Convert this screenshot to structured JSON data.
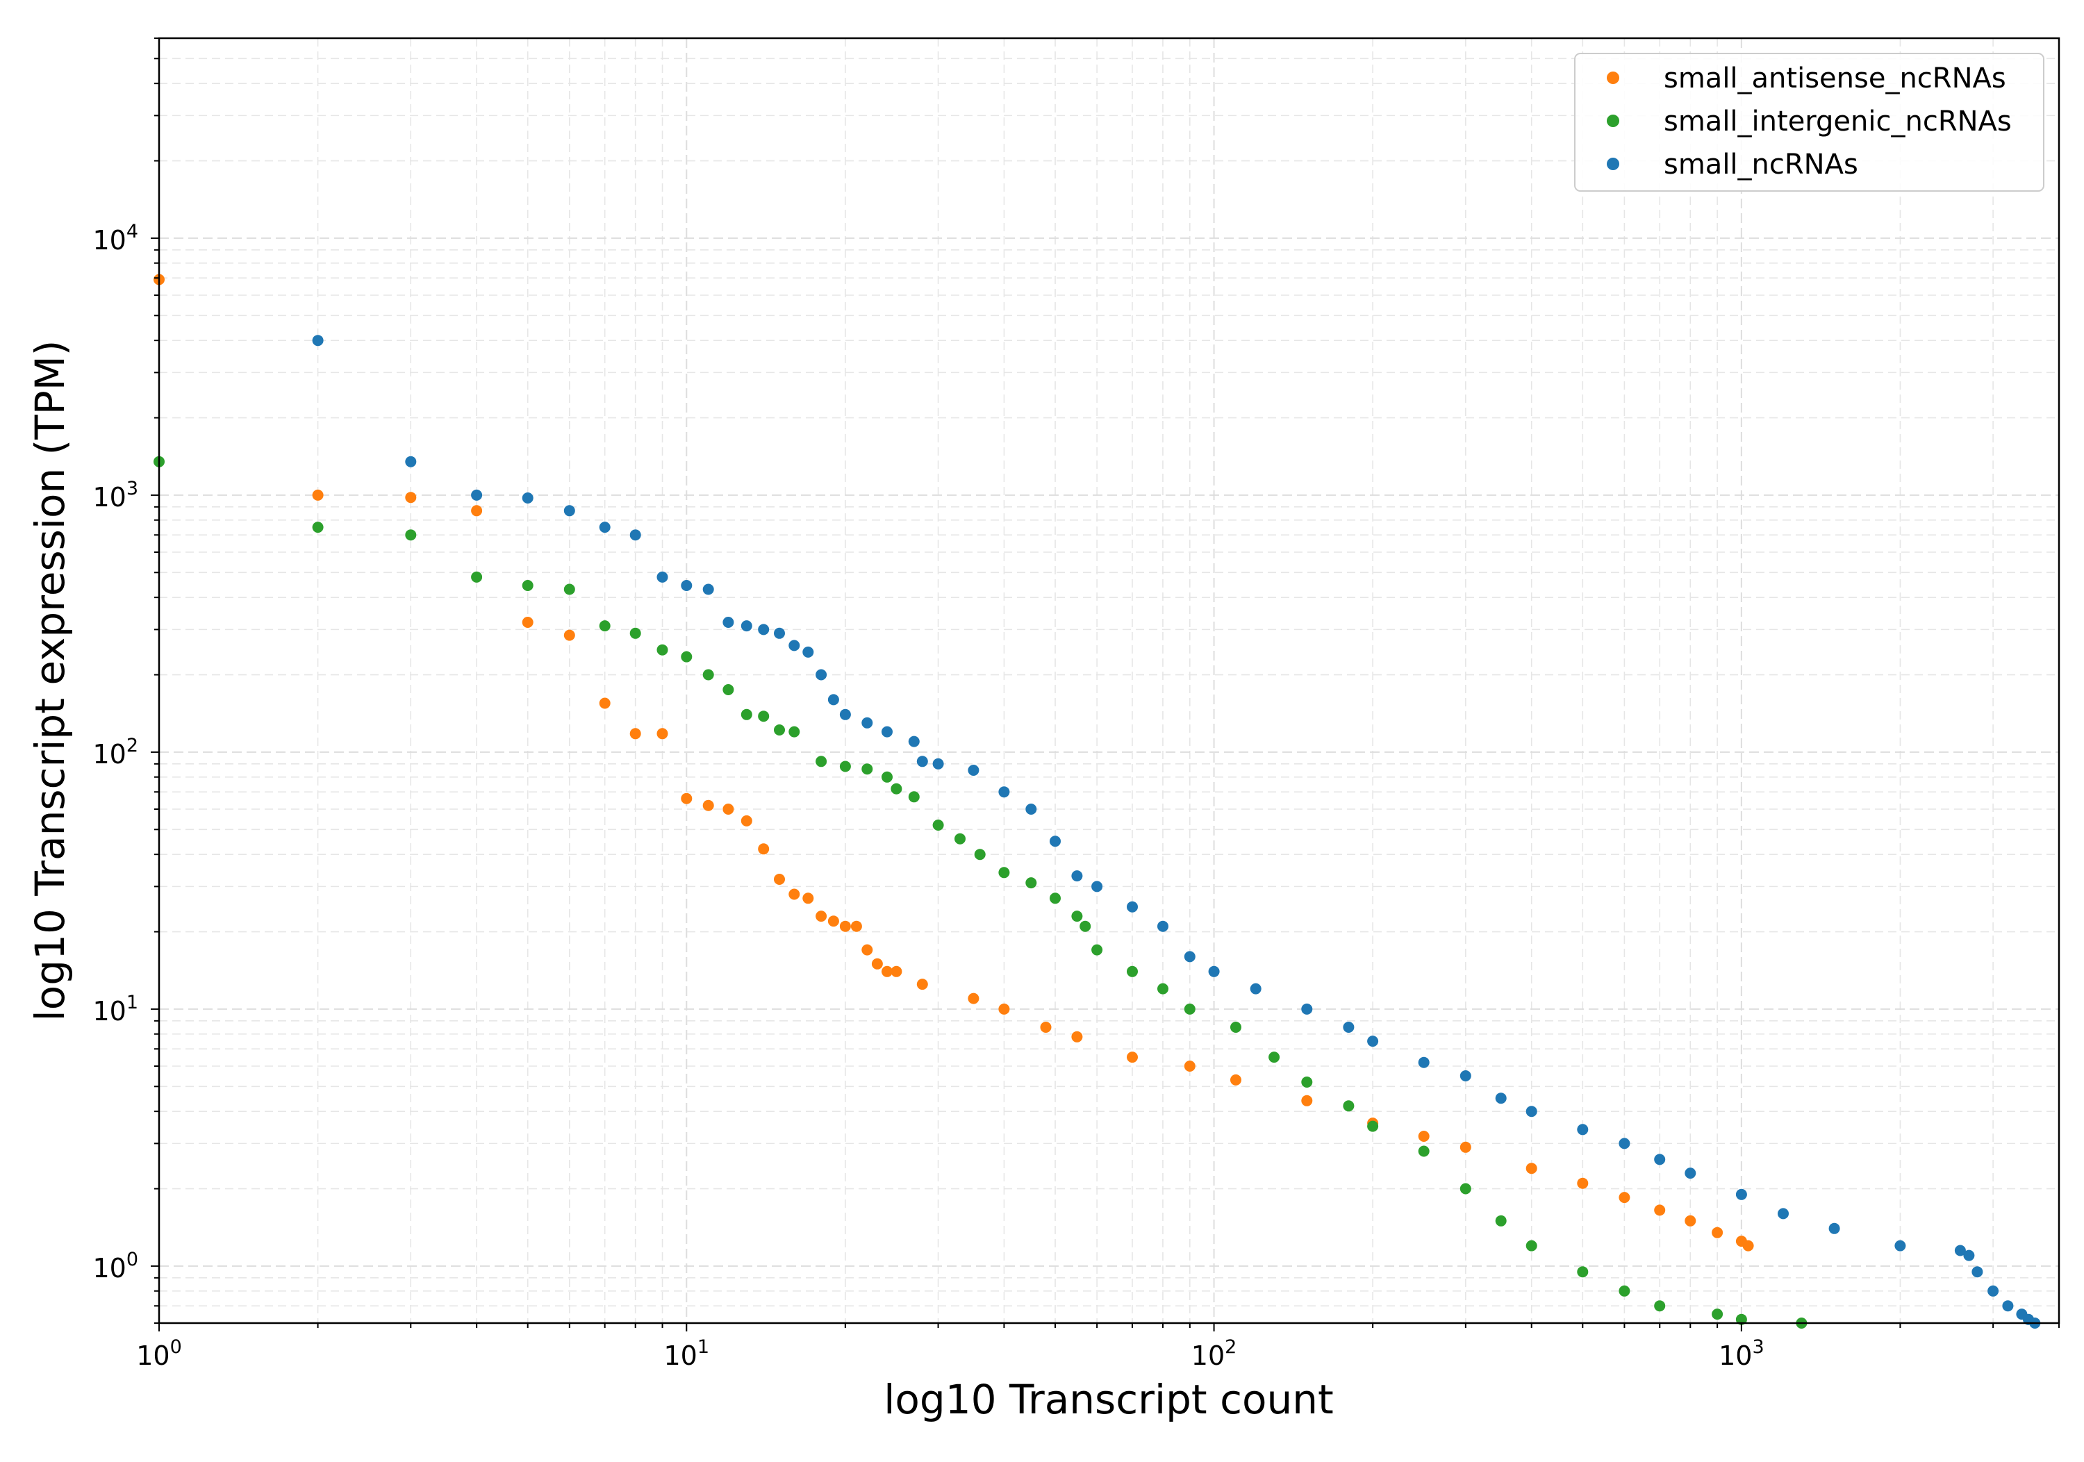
{
  "chart_data": {
    "type": "scatter",
    "xlabel": "log10 Transcript count",
    "ylabel": "log10 Transcript expression (TPM)",
    "x_scale": "log",
    "y_scale": "log",
    "xlim": [
      1,
      4000
    ],
    "ylim": [
      0.6,
      60000
    ],
    "x_ticks": [
      {
        "value": 1,
        "base": "10",
        "exp": "0"
      },
      {
        "value": 10,
        "base": "10",
        "exp": "1"
      },
      {
        "value": 100,
        "base": "10",
        "exp": "2"
      },
      {
        "value": 1000,
        "base": "10",
        "exp": "3"
      }
    ],
    "y_ticks": [
      {
        "value": 1,
        "base": "10",
        "exp": "0"
      },
      {
        "value": 10,
        "base": "10",
        "exp": "1"
      },
      {
        "value": 100,
        "base": "10",
        "exp": "2"
      },
      {
        "value": 1000,
        "base": "10",
        "exp": "3"
      },
      {
        "value": 10000,
        "base": "10",
        "exp": "4"
      }
    ],
    "grid": true,
    "legend_position": "top-right",
    "series": [
      {
        "name": "small_antisense_ncRNAs",
        "color": "#ff7f0e",
        "points": [
          [
            1,
            6900
          ],
          [
            2,
            1000
          ],
          [
            3,
            980
          ],
          [
            4,
            870
          ],
          [
            5,
            320
          ],
          [
            6,
            285
          ],
          [
            7,
            155
          ],
          [
            8,
            118
          ],
          [
            9,
            118
          ],
          [
            10,
            66
          ],
          [
            11,
            62
          ],
          [
            12,
            60
          ],
          [
            13,
            54
          ],
          [
            14,
            42
          ],
          [
            15,
            32
          ],
          [
            16,
            28
          ],
          [
            17,
            27
          ],
          [
            18,
            23
          ],
          [
            19,
            22
          ],
          [
            20,
            21
          ],
          [
            21,
            21
          ],
          [
            22,
            17
          ],
          [
            23,
            15
          ],
          [
            24,
            14
          ],
          [
            25,
            14
          ],
          [
            28,
            12.5
          ],
          [
            35,
            11
          ],
          [
            40,
            10
          ],
          [
            48,
            8.5
          ],
          [
            55,
            7.8
          ],
          [
            70,
            6.5
          ],
          [
            90,
            6.0
          ],
          [
            110,
            5.3
          ],
          [
            150,
            4.4
          ],
          [
            200,
            3.6
          ],
          [
            250,
            3.2
          ],
          [
            300,
            2.9
          ],
          [
            400,
            2.4
          ],
          [
            500,
            2.1
          ],
          [
            600,
            1.85
          ],
          [
            700,
            1.65
          ],
          [
            800,
            1.5
          ],
          [
            900,
            1.35
          ],
          [
            1000,
            1.25
          ],
          [
            1030,
            1.2
          ]
        ]
      },
      {
        "name": "small_intergenic_ncRNAs",
        "color": "#2ca02c",
        "points": [
          [
            1,
            1350
          ],
          [
            2,
            750
          ],
          [
            3,
            700
          ],
          [
            4,
            480
          ],
          [
            5,
            445
          ],
          [
            6,
            430
          ],
          [
            7,
            310
          ],
          [
            8,
            290
          ],
          [
            9,
            250
          ],
          [
            10,
            235
          ],
          [
            11,
            200
          ],
          [
            12,
            175
          ],
          [
            13,
            140
          ],
          [
            14,
            138
          ],
          [
            15,
            122
          ],
          [
            16,
            120
          ],
          [
            18,
            92
          ],
          [
            20,
            88
          ],
          [
            22,
            86
          ],
          [
            24,
            80
          ],
          [
            25,
            72
          ],
          [
            27,
            67
          ],
          [
            30,
            52
          ],
          [
            33,
            46
          ],
          [
            36,
            40
          ],
          [
            40,
            34
          ],
          [
            45,
            31
          ],
          [
            50,
            27
          ],
          [
            55,
            23
          ],
          [
            57,
            21
          ],
          [
            60,
            17
          ],
          [
            70,
            14
          ],
          [
            80,
            12
          ],
          [
            90,
            10
          ],
          [
            110,
            8.5
          ],
          [
            130,
            6.5
          ],
          [
            150,
            5.2
          ],
          [
            180,
            4.2
          ],
          [
            200,
            3.5
          ],
          [
            250,
            2.8
          ],
          [
            300,
            2.0
          ],
          [
            350,
            1.5
          ],
          [
            400,
            1.2
          ],
          [
            500,
            0.95
          ],
          [
            600,
            0.8
          ],
          [
            700,
            0.7
          ],
          [
            900,
            0.65
          ],
          [
            1000,
            0.62
          ],
          [
            1300,
            0.6
          ]
        ]
      },
      {
        "name": "small_ncRNAs",
        "color": "#1f77b4",
        "points": [
          [
            2,
            4000
          ],
          [
            3,
            1350
          ],
          [
            4,
            1000
          ],
          [
            5,
            975
          ],
          [
            6,
            870
          ],
          [
            7,
            750
          ],
          [
            8,
            700
          ],
          [
            9,
            480
          ],
          [
            10,
            445
          ],
          [
            11,
            430
          ],
          [
            12,
            320
          ],
          [
            13,
            310
          ],
          [
            14,
            300
          ],
          [
            15,
            290
          ],
          [
            16,
            260
          ],
          [
            17,
            245
          ],
          [
            18,
            200
          ],
          [
            19,
            160
          ],
          [
            20,
            140
          ],
          [
            22,
            130
          ],
          [
            24,
            120
          ],
          [
            27,
            110
          ],
          [
            28,
            92
          ],
          [
            30,
            90
          ],
          [
            35,
            85
          ],
          [
            40,
            70
          ],
          [
            45,
            60
          ],
          [
            50,
            45
          ],
          [
            55,
            33
          ],
          [
            60,
            30
          ],
          [
            70,
            25
          ],
          [
            80,
            21
          ],
          [
            90,
            16
          ],
          [
            100,
            14
          ],
          [
            120,
            12
          ],
          [
            150,
            10
          ],
          [
            180,
            8.5
          ],
          [
            200,
            7.5
          ],
          [
            250,
            6.2
          ],
          [
            300,
            5.5
          ],
          [
            350,
            4.5
          ],
          [
            400,
            4.0
          ],
          [
            500,
            3.4
          ],
          [
            600,
            3.0
          ],
          [
            700,
            2.6
          ],
          [
            800,
            2.3
          ],
          [
            1000,
            1.9
          ],
          [
            1200,
            1.6
          ],
          [
            1500,
            1.4
          ],
          [
            2000,
            1.2
          ],
          [
            2600,
            1.15
          ],
          [
            2700,
            1.1
          ],
          [
            2800,
            0.95
          ],
          [
            3000,
            0.8
          ],
          [
            3200,
            0.7
          ],
          [
            3400,
            0.65
          ],
          [
            3500,
            0.62
          ],
          [
            3600,
            0.6
          ]
        ]
      }
    ]
  }
}
